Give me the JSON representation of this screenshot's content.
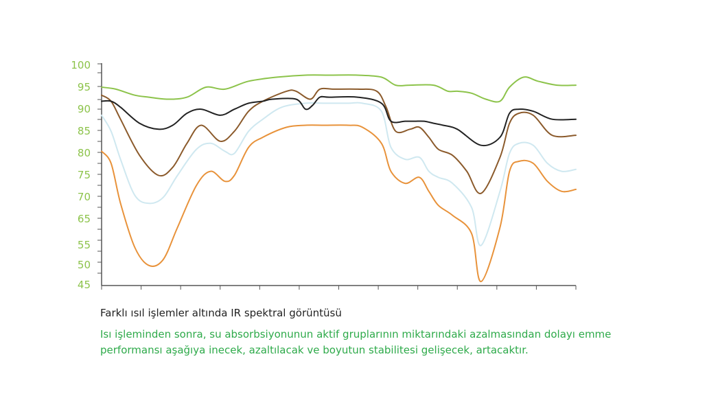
{
  "colors": {
    "axis": "#555555",
    "tick_label": "#8cc34a",
    "caption_title": "#222222",
    "caption_text": "#2eaa4a"
  },
  "caption": {
    "title": "Farklı ısıl işlemler altında IR spektral görüntüsü",
    "text": "Isı işleminden sonra, su absorbsiyonunun aktif gruplarının miktarındaki azalmasından dolayı emme performansı aşağıya inecek, azaltılacak ve boyutun stabilitesi gelişecek, artacaktır."
  },
  "chart_data": {
    "type": "line",
    "title": "",
    "xlabel": "",
    "ylabel": "",
    "x_ticks": 13,
    "xlim": [
      0,
      100
    ],
    "y_tick_labels": [
      "100",
      "95",
      "90",
      "85",
      "80",
      "75",
      "70",
      "65",
      "55",
      "50",
      "45"
    ],
    "legend": "none",
    "grid": false,
    "series": [
      {
        "color": "#8cc34a",
        "x": [
          0,
          3,
          7,
          10,
          14,
          18,
          22,
          26,
          31,
          37,
          43,
          48,
          54,
          59,
          62,
          65,
          70,
          73,
          75,
          78,
          81,
          84,
          86,
          89,
          92,
          96,
          100
        ],
        "values": [
          95,
          94.5,
          93,
          92.5,
          92,
          92.5,
          95,
          94.5,
          96.5,
          97.5,
          98,
          98,
          98,
          97.5,
          95.5,
          95.5,
          95.5,
          94,
          94,
          93.5,
          92,
          91.5,
          95,
          97.5,
          96.5,
          95.5,
          95.5
        ]
      },
      {
        "color": "#222222",
        "x": [
          0,
          2,
          4,
          8,
          12,
          15,
          18,
          21,
          25,
          28,
          31,
          34,
          36,
          41,
          43,
          44.5,
          46,
          48,
          54,
          59,
          61,
          64,
          66,
          68,
          70,
          72,
          75,
          80,
          84,
          86,
          88,
          91,
          95,
          100
        ],
        "values": [
          91.5,
          91.5,
          90,
          86,
          84.5,
          85.5,
          88.5,
          89.5,
          88,
          89.5,
          91,
          91.5,
          92,
          92,
          89.5,
          90.5,
          92.5,
          92.5,
          92.5,
          91,
          86.5,
          86.5,
          86.5,
          86.5,
          86,
          85.5,
          84.5,
          80.5,
          82.5,
          88.5,
          89.5,
          89,
          87,
          87
        ]
      },
      {
        "color": "#8b5a2b",
        "x": [
          0,
          2,
          4,
          8,
          12,
          15,
          18,
          21,
          25,
          28,
          31,
          34,
          39,
          41,
          44,
          46,
          49,
          54,
          58,
          60,
          62,
          65,
          67,
          69,
          71,
          74,
          77,
          80,
          84,
          86,
          88,
          91,
          95,
          100
        ],
        "values": [
          93,
          91.5,
          87,
          78,
          73,
          75,
          81,
          85.5,
          81.5,
          84,
          89,
          91.5,
          94,
          94,
          92,
          94.5,
          94.5,
          94.5,
          94,
          90,
          84,
          84.5,
          85,
          82.5,
          79.5,
          78,
          74,
          68.5,
          77.5,
          86,
          88.5,
          88,
          83,
          83
        ]
      },
      {
        "color": "#cfe8f0",
        "x": [
          0,
          2,
          4,
          7,
          10,
          13,
          16,
          20,
          23,
          26,
          28,
          31,
          34,
          38,
          43,
          47,
          52,
          55,
          59,
          61,
          64,
          67,
          69,
          71,
          74,
          78,
          80,
          84,
          86,
          88,
          91,
          94,
          97,
          100
        ],
        "values": [
          88,
          84,
          77,
          68,
          66,
          67.5,
          73,
          79.5,
          81,
          79,
          78.5,
          84,
          87,
          90,
          91,
          91,
          91,
          91,
          89,
          80,
          77,
          77.5,
          74,
          72.5,
          71,
          65,
          55.5,
          69,
          78.5,
          81,
          80.5,
          76,
          74,
          74.5
        ]
      },
      {
        "color": "#e8923a",
        "x": [
          0,
          2,
          4,
          7,
          10,
          13,
          16,
          20,
          23,
          26,
          28,
          31,
          34,
          39,
          43,
          47,
          52,
          55,
          59,
          61,
          64,
          67,
          69,
          71,
          74,
          78,
          80,
          84,
          86,
          88,
          91,
          94,
          97,
          100
        ],
        "values": [
          79,
          76,
          66,
          55,
          50.5,
          52,
          60,
          70.5,
          74,
          71.5,
          73,
          80,
          82.5,
          85,
          85.5,
          85.5,
          85.5,
          85,
          81,
          74,
          71,
          72.5,
          69,
          65.5,
          63,
          58.5,
          46.5,
          60,
          74,
          76.5,
          76,
          71.5,
          69,
          69.5
        ]
      }
    ]
  }
}
